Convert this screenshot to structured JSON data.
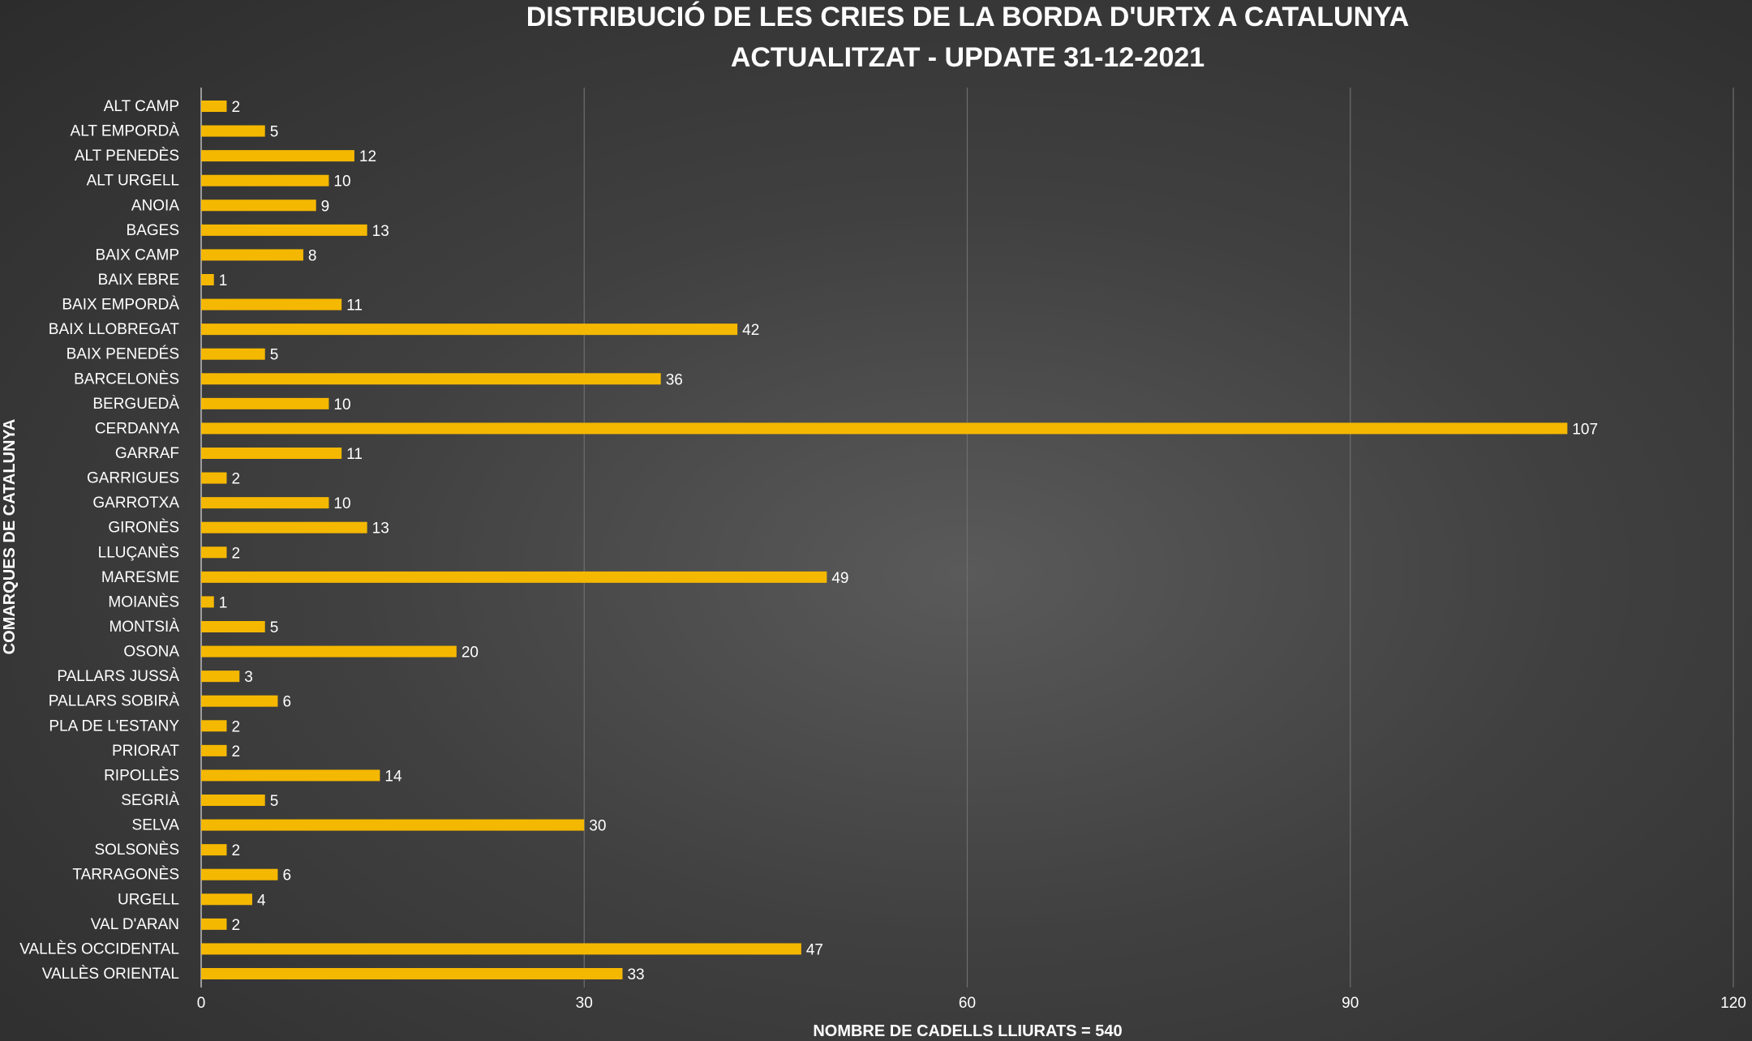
{
  "chart_data": {
    "type": "bar",
    "orientation": "horizontal",
    "title": "DISTRIBUCIÓ DE LES CRIES DE LA BORDA D'URTX A CATALUNYA",
    "subtitle": "ACTUALITZAT - UPDATE 31-12-2021",
    "xlabel": "NOMBRE DE CADELLS LLIURATS = 540",
    "ylabel": "COMARQUES DE CATALUNYA",
    "xlim": [
      0,
      120
    ],
    "xticks": [
      0,
      30,
      60,
      90,
      120
    ],
    "grid": "vertical",
    "legend": "none",
    "bar_color": "#f5b800",
    "categories": [
      "ALT CAMP",
      "ALT EMPORDÀ",
      "ALT PENEDÈS",
      "ALT URGELL",
      "ANOIA",
      "BAGES",
      "BAIX CAMP",
      "BAIX EBRE",
      "BAIX EMPORDÀ",
      "BAIX LLOBREGAT",
      "BAIX PENEDÉS",
      "BARCELONÈS",
      "BERGUEDÀ",
      "CERDANYA",
      "GARRAF",
      "GARRIGUES",
      "GARROTXA",
      "GIRONÈS",
      "LLUÇANÈS",
      "MARESME",
      "MOIANÈS",
      "MONTSIÀ",
      "OSONA",
      "PALLARS JUSSÀ",
      "PALLARS SOBIRÀ",
      "PLA DE L'ESTANY",
      "PRIORAT",
      "RIPOLLÈS",
      "SEGRIÀ",
      "SELVA",
      "SOLSONÈS",
      "TARRAGONÈS",
      "URGELL",
      "VAL D'ARAN",
      "VALLÈS OCCIDENTAL",
      "VALLÈS ORIENTAL"
    ],
    "values": [
      2,
      5,
      12,
      10,
      9,
      13,
      8,
      1,
      11,
      42,
      5,
      36,
      10,
      107,
      11,
      2,
      10,
      13,
      2,
      49,
      1,
      5,
      20,
      3,
      6,
      2,
      2,
      14,
      5,
      30,
      2,
      6,
      4,
      2,
      47,
      33
    ]
  }
}
